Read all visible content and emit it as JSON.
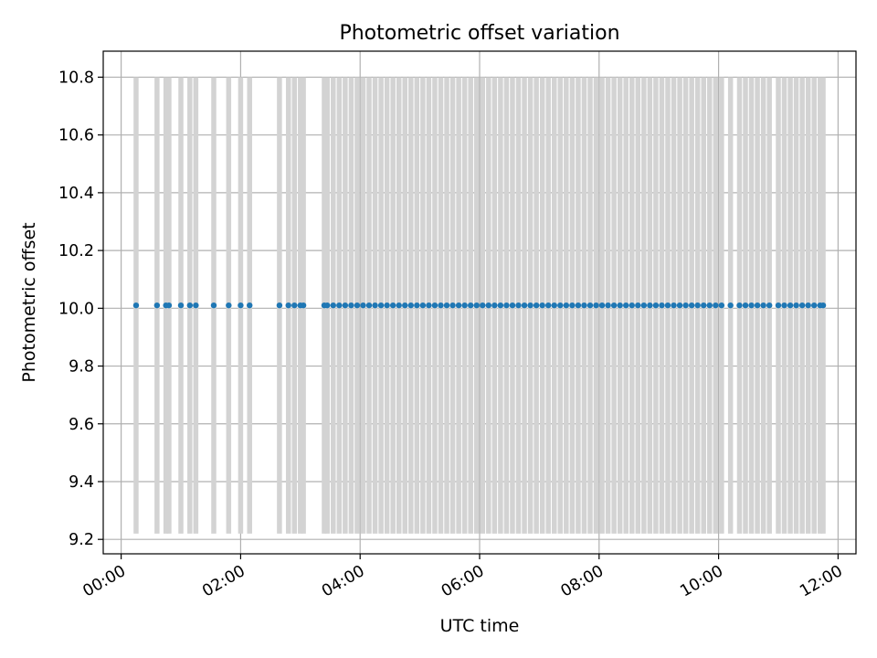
{
  "chart_data": {
    "type": "scatter",
    "title": "Photometric offset variation",
    "xlabel": "UTC time",
    "ylabel": "Photometric offset",
    "x_ticks": [
      "00:00",
      "02:00",
      "04:00",
      "06:00",
      "08:00",
      "10:00",
      "12:00"
    ],
    "y_ticks": [
      "9.2",
      "9.4",
      "9.6",
      "9.8",
      "10.0",
      "10.2",
      "10.4",
      "10.6",
      "10.8"
    ],
    "xlim": [
      "-00:18",
      "12:18"
    ],
    "ylim": [
      9.15,
      10.89
    ],
    "grid": true,
    "legend": "none",
    "error_bar_range": [
      9.22,
      10.8
    ],
    "series": [
      {
        "type": "scatter",
        "color": "#1f77b4",
        "x": [
          "00:15",
          "00:36",
          "00:45",
          "00:48",
          "01:00",
          "01:09",
          "01:15",
          "01:33",
          "01:48",
          "02:00",
          "02:09",
          "02:39",
          "02:48",
          "02:54",
          "03:00",
          "03:03",
          "03:24",
          "03:27",
          "03:33",
          "03:39",
          "03:45",
          "03:51",
          "03:57",
          "04:03",
          "04:09",
          "04:15",
          "04:21",
          "04:27",
          "04:33",
          "04:39",
          "04:45",
          "04:51",
          "04:57",
          "05:03",
          "05:09",
          "05:15",
          "05:21",
          "05:27",
          "05:33",
          "05:39",
          "05:45",
          "05:51",
          "05:57",
          "06:03",
          "06:09",
          "06:15",
          "06:21",
          "06:27",
          "06:33",
          "06:39",
          "06:45",
          "06:51",
          "06:57",
          "07:03",
          "07:09",
          "07:15",
          "07:21",
          "07:27",
          "07:33",
          "07:39",
          "07:45",
          "07:51",
          "07:57",
          "08:03",
          "08:09",
          "08:15",
          "08:21",
          "08:27",
          "08:33",
          "08:39",
          "08:45",
          "08:51",
          "08:57",
          "09:03",
          "09:09",
          "09:15",
          "09:21",
          "09:27",
          "09:33",
          "09:39",
          "09:45",
          "09:51",
          "09:57",
          "10:03",
          "10:12",
          "10:21",
          "10:27",
          "10:33",
          "10:39",
          "10:45",
          "10:51",
          "11:00",
          "11:06",
          "11:12",
          "11:18",
          "11:24",
          "11:30",
          "11:36",
          "11:42",
          "11:45"
        ],
        "y": [
          10.01,
          10.01,
          10.01,
          10.01,
          10.01,
          10.01,
          10.01,
          10.01,
          10.01,
          10.01,
          10.01,
          10.01,
          10.01,
          10.01,
          10.01,
          10.01,
          10.01,
          10.01,
          10.01,
          10.01,
          10.01,
          10.01,
          10.01,
          10.01,
          10.01,
          10.01,
          10.01,
          10.01,
          10.01,
          10.01,
          10.01,
          10.01,
          10.01,
          10.01,
          10.01,
          10.01,
          10.01,
          10.01,
          10.01,
          10.01,
          10.01,
          10.01,
          10.01,
          10.01,
          10.01,
          10.01,
          10.01,
          10.01,
          10.01,
          10.01,
          10.01,
          10.01,
          10.01,
          10.01,
          10.01,
          10.01,
          10.01,
          10.01,
          10.01,
          10.01,
          10.01,
          10.01,
          10.01,
          10.01,
          10.01,
          10.01,
          10.01,
          10.01,
          10.01,
          10.01,
          10.01,
          10.01,
          10.01,
          10.01,
          10.01,
          10.01,
          10.01,
          10.01,
          10.01,
          10.01,
          10.01,
          10.01,
          10.01,
          10.01,
          10.01,
          10.01,
          10.01,
          10.01,
          10.01,
          10.01,
          10.01,
          10.01,
          10.01,
          10.01,
          10.01,
          10.01,
          10.01,
          10.01,
          10.01,
          10.01
        ]
      }
    ],
    "colors": {
      "points": "#1f77b4",
      "error_bars": "#d3d3d3",
      "grid": "#b0b0b0",
      "axes": "#000000"
    }
  }
}
